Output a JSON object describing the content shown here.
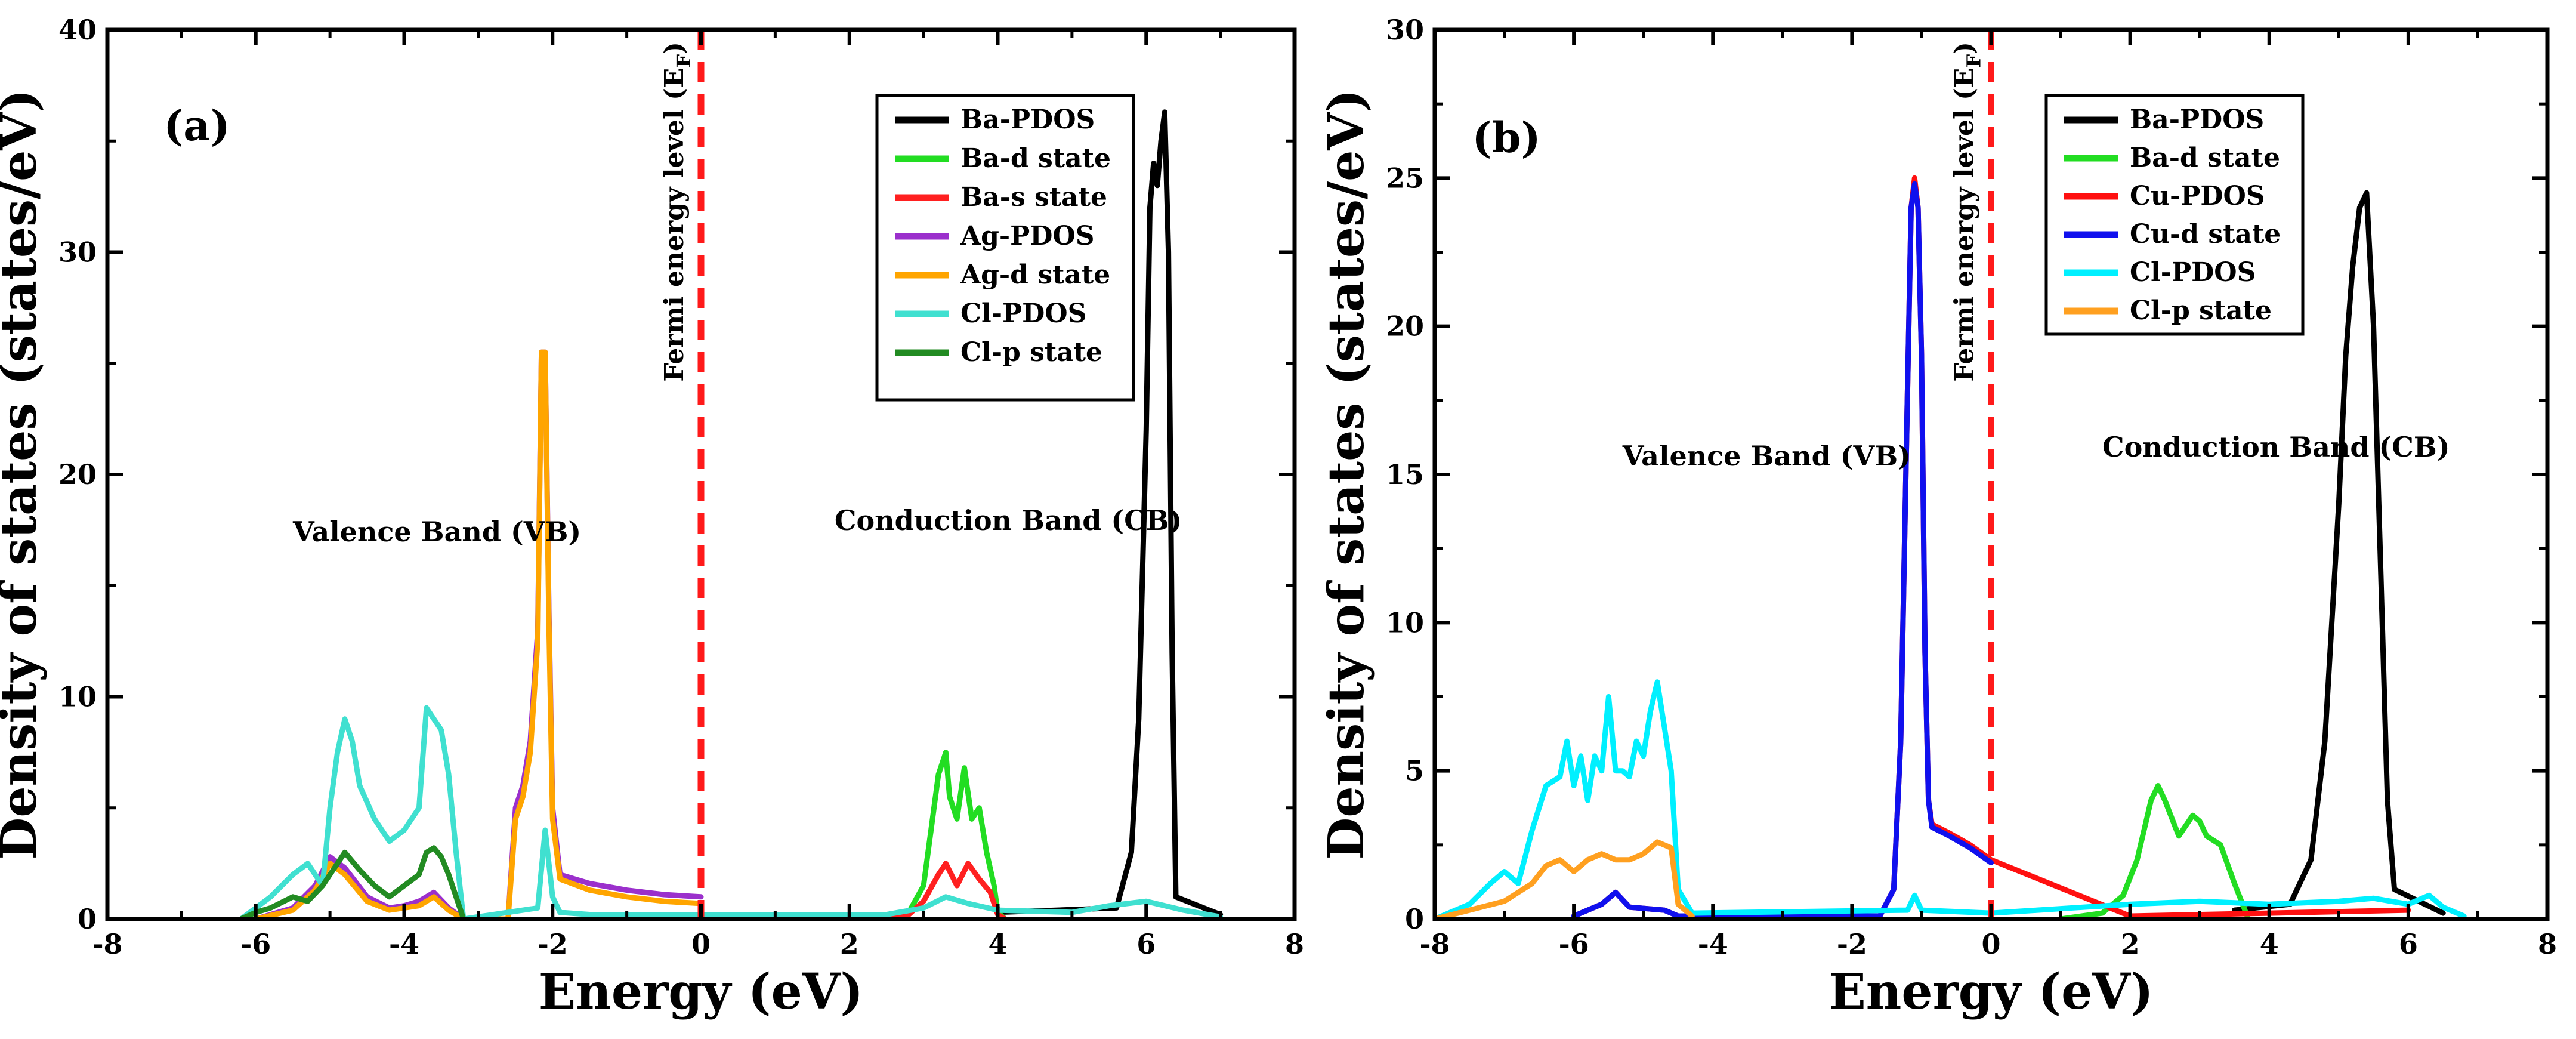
{
  "chart_data": [
    {
      "type": "line",
      "panel_label": "(a)",
      "xlabel": "Energy (eV)",
      "ylabel": "Density of states (states/eV)",
      "xlim": [
        -8,
        8
      ],
      "ylim": [
        0,
        40
      ],
      "xticks": [
        -8,
        -6,
        -4,
        -2,
        0,
        2,
        4,
        6,
        8
      ],
      "yticks": [
        0,
        10,
        20,
        30,
        40
      ],
      "fermi_level": 0,
      "fermi_label": "Fermi energy level (E",
      "fermi_subscript": "F",
      "fermi_close": ")",
      "annotations": [
        {
          "text": "Valence Band (VB)",
          "x": -5.5,
          "y": 17
        },
        {
          "text": "Conduction Band (CB)",
          "x": 1.8,
          "y": 17.5
        }
      ],
      "legend_position": "top-right",
      "series": [
        {
          "name": "Ba-PDOS",
          "color": "#000000",
          "x": [
            4.0,
            5.6,
            5.8,
            5.9,
            6.0,
            6.05,
            6.1,
            6.15,
            6.2,
            6.25,
            6.3,
            6.35,
            6.4,
            7.0
          ],
          "y": [
            0.3,
            0.5,
            3.0,
            9.0,
            22.0,
            32.0,
            34.0,
            33.0,
            35.0,
            36.3,
            30.0,
            12.0,
            1.0,
            0.2
          ]
        },
        {
          "name": "Ba-d state",
          "color": "#22dd22",
          "x": [
            2.4,
            2.8,
            3.0,
            3.1,
            3.2,
            3.3,
            3.35,
            3.45,
            3.55,
            3.65,
            3.75,
            3.85,
            3.95,
            4.0,
            4.1
          ],
          "y": [
            0.0,
            0.3,
            1.5,
            4.0,
            6.5,
            7.5,
            5.5,
            4.5,
            6.8,
            4.5,
            5.0,
            3.0,
            1.5,
            0.3,
            0.0
          ]
        },
        {
          "name": "Ba-s state",
          "color": "#ff2020",
          "x": [
            2.4,
            2.8,
            3.0,
            3.2,
            3.3,
            3.45,
            3.6,
            3.75,
            3.9,
            4.0,
            4.1
          ],
          "y": [
            0.0,
            0.2,
            0.8,
            2.0,
            2.5,
            1.5,
            2.5,
            1.8,
            1.2,
            0.2,
            0.0
          ]
        },
        {
          "name": "Ag-PDOS",
          "color": "#9b30cc",
          "x": [
            -6.0,
            -5.5,
            -5.2,
            -5.0,
            -4.8,
            -4.5,
            -4.2,
            -4.0,
            -3.8,
            -3.6,
            -3.4,
            -3.2,
            -2.6,
            -2.5,
            -2.4,
            -2.3,
            -2.2,
            -2.15,
            -2.1,
            -2.05,
            -2.0,
            -1.9,
            -1.5,
            -1.0,
            -0.5,
            0.0
          ],
          "y": [
            0.0,
            0.5,
            1.5,
            2.8,
            2.3,
            1.0,
            0.5,
            0.6,
            0.8,
            1.2,
            0.5,
            0.0,
            0.0,
            5.0,
            6.0,
            8.0,
            13.0,
            25.5,
            25.5,
            14.0,
            5.0,
            2.0,
            1.6,
            1.3,
            1.1,
            1.0
          ]
        },
        {
          "name": "Ag-d state",
          "color": "#ffa500",
          "x": [
            -6.0,
            -5.5,
            -5.2,
            -5.0,
            -4.8,
            -4.5,
            -4.2,
            -4.0,
            -3.8,
            -3.6,
            -3.4,
            -3.2,
            -2.6,
            -2.5,
            -2.4,
            -2.3,
            -2.2,
            -2.15,
            -2.1,
            -2.05,
            -2.0,
            -1.9,
            -1.5,
            -1.0,
            -0.5,
            0.0
          ],
          "y": [
            0.0,
            0.4,
            1.3,
            2.5,
            2.0,
            0.8,
            0.4,
            0.5,
            0.6,
            1.0,
            0.4,
            0.0,
            0.0,
            4.5,
            5.5,
            7.5,
            12.5,
            25.5,
            25.5,
            13.5,
            4.5,
            1.8,
            1.3,
            1.0,
            0.8,
            0.7
          ]
        },
        {
          "name": "Cl-PDOS",
          "color": "#40e0d0",
          "x": [
            -6.2,
            -6.0,
            -5.8,
            -5.5,
            -5.3,
            -5.1,
            -5.0,
            -4.9,
            -4.8,
            -4.7,
            -4.6,
            -4.4,
            -4.2,
            -4.0,
            -3.8,
            -3.7,
            -3.6,
            -3.5,
            -3.4,
            -3.3,
            -3.2,
            -2.2,
            -2.1,
            -2.0,
            -1.9,
            -1.5,
            0.0,
            2.5,
            3.0,
            3.3,
            3.6,
            4.0,
            5.0,
            5.5,
            6.0,
            6.5,
            7.0
          ],
          "y": [
            0.0,
            0.5,
            1.0,
            2.0,
            2.5,
            1.5,
            5.0,
            7.5,
            9.0,
            8.0,
            6.0,
            4.5,
            3.5,
            4.0,
            5.0,
            9.5,
            9.0,
            8.5,
            6.5,
            3.0,
            0.0,
            0.5,
            4.0,
            1.0,
            0.3,
            0.2,
            0.2,
            0.2,
            0.5,
            1.0,
            0.7,
            0.4,
            0.3,
            0.6,
            0.8,
            0.4,
            0.1
          ]
        },
        {
          "name": "Cl-p state",
          "color": "#228b22",
          "x": [
            -6.2,
            -6.0,
            -5.8,
            -5.5,
            -5.3,
            -5.1,
            -5.0,
            -4.9,
            -4.8,
            -4.6,
            -4.4,
            -4.2,
            -4.0,
            -3.8,
            -3.7,
            -3.6,
            -3.5,
            -3.4,
            -3.3,
            -3.2
          ],
          "y": [
            0.0,
            0.3,
            0.5,
            1.0,
            0.8,
            1.5,
            2.0,
            2.5,
            3.0,
            2.2,
            1.5,
            1.0,
            1.5,
            2.0,
            3.0,
            3.2,
            2.8,
            2.0,
            1.0,
            0.0
          ]
        }
      ]
    },
    {
      "type": "line",
      "panel_label": "(b)",
      "xlabel": "Energy (eV)",
      "ylabel": "Density of states (states/eV)",
      "xlim": [
        -8,
        8
      ],
      "ylim": [
        0,
        30
      ],
      "xticks": [
        -8,
        -6,
        -4,
        -2,
        0,
        2,
        4,
        6,
        8
      ],
      "yticks": [
        0,
        5,
        10,
        15,
        20,
        25,
        30
      ],
      "fermi_level": 0,
      "fermi_label": "Fermi energy level (E",
      "fermi_subscript": "F",
      "fermi_close": ")",
      "annotations": [
        {
          "text": "Valence Band (VB)",
          "x": -5.3,
          "y": 15.3
        },
        {
          "text": "Conduction Band (CB)",
          "x": 1.6,
          "y": 15.6
        }
      ],
      "legend_position": "top-right",
      "series": [
        {
          "name": "Ba-PDOS",
          "color": "#000000",
          "x": [
            3.5,
            4.3,
            4.6,
            4.8,
            5.0,
            5.1,
            5.2,
            5.3,
            5.4,
            5.5,
            5.6,
            5.7,
            5.8,
            6.5
          ],
          "y": [
            0.3,
            0.5,
            2.0,
            6.0,
            14.0,
            19.0,
            22.0,
            24.0,
            24.5,
            20.0,
            12.0,
            4.0,
            1.0,
            0.2
          ]
        },
        {
          "name": "Ba-d state",
          "color": "#22dd22",
          "x": [
            1.0,
            1.6,
            1.9,
            2.1,
            2.3,
            2.4,
            2.5,
            2.7,
            2.9,
            3.0,
            3.1,
            3.3,
            3.5,
            3.7
          ],
          "y": [
            0.0,
            0.2,
            0.8,
            2.0,
            4.0,
            4.5,
            4.0,
            2.8,
            3.5,
            3.3,
            2.8,
            2.5,
            1.2,
            0.0
          ]
        },
        {
          "name": "Cu-PDOS",
          "color": "#ff1010",
          "x": [
            -6.0,
            -5.6,
            -5.4,
            -5.2,
            -4.7,
            -4.5,
            -1.6,
            -1.4,
            -1.3,
            -1.2,
            -1.15,
            -1.1,
            -1.05,
            -1.0,
            -0.95,
            -0.9,
            -0.85,
            -0.6,
            -0.3,
            0.0,
            2.0,
            4.0,
            6.0
          ],
          "y": [
            0.1,
            0.5,
            0.9,
            0.4,
            0.3,
            0.1,
            0.1,
            1.0,
            6.0,
            18.0,
            24.0,
            25.0,
            24.0,
            19.0,
            9.0,
            4.0,
            3.2,
            2.9,
            2.5,
            2.0,
            0.1,
            0.2,
            0.3
          ]
        },
        {
          "name": "Cu-d state",
          "color": "#1010ee",
          "x": [
            -6.0,
            -5.6,
            -5.4,
            -5.2,
            -4.7,
            -4.5,
            -1.6,
            -1.4,
            -1.3,
            -1.2,
            -1.15,
            -1.1,
            -1.05,
            -1.0,
            -0.95,
            -0.9,
            -0.85,
            -0.6,
            -0.3,
            0.0
          ],
          "y": [
            0.1,
            0.5,
            0.9,
            0.4,
            0.3,
            0.1,
            0.1,
            1.0,
            6.0,
            18.0,
            24.0,
            24.8,
            24.0,
            19.0,
            9.0,
            4.0,
            3.1,
            2.8,
            2.4,
            1.9
          ]
        },
        {
          "name": "Cl-PDOS",
          "color": "#00f0ff",
          "x": [
            -8.0,
            -7.5,
            -7.2,
            -7.0,
            -6.8,
            -6.6,
            -6.4,
            -6.2,
            -6.1,
            -6.0,
            -5.9,
            -5.8,
            -5.7,
            -5.6,
            -5.5,
            -5.4,
            -5.3,
            -5.2,
            -5.1,
            -5.0,
            -4.9,
            -4.8,
            -4.7,
            -4.6,
            -4.5,
            -4.3,
            -1.2,
            -1.1,
            -1.0,
            0.0,
            2.0,
            3.0,
            4.0,
            5.0,
            5.5,
            6.0,
            6.3,
            6.5,
            6.8
          ],
          "y": [
            0.0,
            0.5,
            1.2,
            1.6,
            1.2,
            3.0,
            4.5,
            4.8,
            6.0,
            4.5,
            5.5,
            4.0,
            5.5,
            5.0,
            7.5,
            5.0,
            5.0,
            4.8,
            6.0,
            5.5,
            7.0,
            8.0,
            6.5,
            5.0,
            1.0,
            0.2,
            0.3,
            0.8,
            0.3,
            0.2,
            0.5,
            0.6,
            0.5,
            0.6,
            0.7,
            0.5,
            0.8,
            0.4,
            0.1
          ]
        },
        {
          "name": "Cl-p state",
          "color": "#ffa020",
          "x": [
            -8.0,
            -7.5,
            -7.0,
            -6.6,
            -6.4,
            -6.2,
            -6.0,
            -5.8,
            -5.6,
            -5.4,
            -5.2,
            -5.0,
            -4.8,
            -4.6,
            -4.5,
            -4.3
          ],
          "y": [
            0.0,
            0.3,
            0.6,
            1.2,
            1.8,
            2.0,
            1.6,
            2.0,
            2.2,
            2.0,
            2.0,
            2.2,
            2.6,
            2.4,
            0.5,
            0.1
          ]
        }
      ]
    }
  ]
}
